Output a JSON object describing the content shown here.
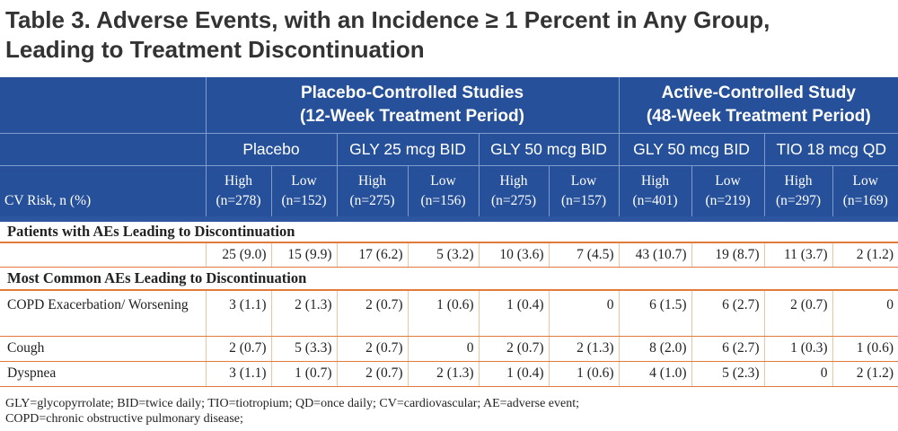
{
  "title": {
    "line1": "Table 3. Adverse Events, with an Incidence ≥ 1 Percent in Any Group,",
    "line2": "Leading to Treatment Discontinuation"
  },
  "header": {
    "groups": [
      {
        "line1": "Placebo-Controlled Studies",
        "line2": "(12-Week Treatment Period)"
      },
      {
        "line1": "Active-Controlled Study",
        "line2": "(48-Week Treatment Period)"
      }
    ],
    "arms": [
      "Placebo",
      "GLY 25 mcg BID",
      "GLY 50 mcg BID",
      "GLY 50 mcg BID",
      "TIO 18 mcg QD"
    ],
    "risk_label": "CV Risk, n (%)",
    "subcols": [
      {
        "level": "High",
        "n": "(n=278)"
      },
      {
        "level": "Low",
        "n": "(n=152)"
      },
      {
        "level": "High",
        "n": "(n=275)"
      },
      {
        "level": "Low",
        "n": "(n=156)"
      },
      {
        "level": "High",
        "n": "(n=275)"
      },
      {
        "level": "Low",
        "n": "(n=157)"
      },
      {
        "level": "High",
        "n": "(n=401)"
      },
      {
        "level": "Low",
        "n": "(n=219)"
      },
      {
        "level": "High",
        "n": "(n=297)"
      },
      {
        "level": "Low",
        "n": "(n=169)"
      }
    ]
  },
  "sections": [
    {
      "title": "Patients with AEs Leading to Discontinuation",
      "rows": [
        {
          "label": "",
          "values": [
            "25 (9.0)",
            "15 (9.9)",
            "17 (6.2)",
            "5 (3.2)",
            "10 (3.6)",
            "7 (4.5)",
            "43 (10.7)",
            "19 (8.7)",
            "11 (3.7)",
            "2 (1.2)"
          ]
        }
      ]
    },
    {
      "title": "Most Common AEs Leading to Discontinuation",
      "rows": [
        {
          "label": "COPD Exacerbation/ Worsening",
          "values": [
            "3 (1.1)",
            "2 (1.3)",
            "2 (0.7)",
            "1 (0.6)",
            "1 (0.4)",
            "0",
            "6 (1.5)",
            "6 (2.7)",
            "2 (0.7)",
            "0"
          ]
        },
        {
          "label": "Cough",
          "values": [
            "2 (0.7)",
            "5 (3.3)",
            "2 (0.7)",
            "0",
            "2 (0.7)",
            "2 (1.3)",
            "8 (2.0)",
            "6 (2.7)",
            "1 (0.3)",
            "1 (0.6)"
          ]
        },
        {
          "label": "Dyspnea",
          "values": [
            "3 (1.1)",
            "1 (0.7)",
            "2 (0.7)",
            "2 (1.3)",
            "1 (0.4)",
            "1 (0.6)",
            "4 (1.0)",
            "5 (2.3)",
            "0",
            "2 (1.2)"
          ]
        }
      ]
    }
  ],
  "footnote": {
    "line1": "GLY=glycopyrrolate; BID=twice daily; TIO=tiotropium; QD=once daily; CV=cardiovascular; AE=adverse event;",
    "line2": "COPD=chronic obstructive pulmonary disease;"
  },
  "colors": {
    "header_bg": "#26519a",
    "header_text": "#ffffff",
    "rule_orange": "#e07b39",
    "title_text": "#333333"
  }
}
